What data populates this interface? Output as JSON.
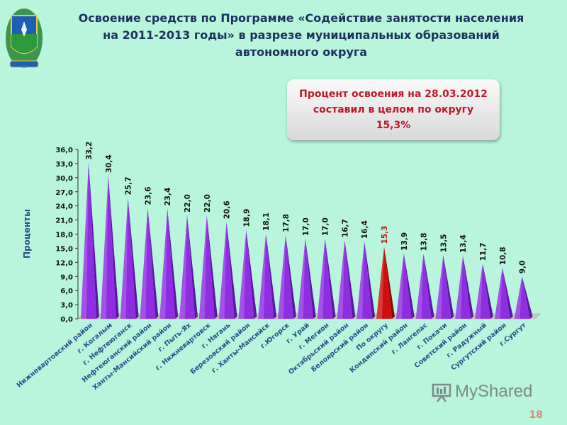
{
  "title": "Освоение средств по Программе «Содействие занятости населения на 2011-2013 годы» в разрезе муниципальных образований автономного округа",
  "callout": "Процент освоения на 28.03.2012 составил в целом по округу 15,3%",
  "page_number": "18",
  "watermark": "MyShared",
  "emblem_icon": "coat-of-arms-icon",
  "colors": {
    "bar": "#8e2de2",
    "highlight_bar": "#d01010",
    "background": "#b8f5dc",
    "title": "#1e2f5e"
  },
  "chart_data": {
    "type": "bar",
    "ylabel": "Проценты",
    "ylim": [
      0,
      36
    ],
    "yticks": [
      "0,0",
      "3,0",
      "6,0",
      "9,0",
      "12,0",
      "15,0",
      "18,0",
      "21,0",
      "24,0",
      "27,0",
      "30,0",
      "33,0",
      "36,0"
    ],
    "grid": false,
    "highlight_category": "По округу",
    "categories": [
      "Нижневартовский район",
      "г. Когалым",
      "г. Нефтеюганск",
      "Нефтеюганский район",
      "Ханты-Мансийский район",
      "г. Пыть-Ях",
      "г. Нижневартовск",
      "г. Нягань",
      "Березовский район",
      "г. Ханты-Мансийск",
      "г.Югорск",
      "г. Урай",
      "г. Мегион",
      "Октябрьский район",
      "Белоярский район",
      "По округу",
      "Кондинский район",
      "г. Лангепас",
      "г. Покачи",
      "Советский район",
      "г. Радужный",
      "Сургутский район",
      "г.Сургут"
    ],
    "values": [
      33.2,
      30.4,
      25.7,
      23.6,
      23.4,
      22.0,
      22.0,
      20.6,
      18.9,
      18.1,
      17.8,
      17.0,
      17.0,
      16.7,
      16.4,
      15.3,
      13.9,
      13.8,
      13.5,
      13.4,
      11.7,
      10.8,
      9.0
    ],
    "value_labels": [
      "33,2",
      "30,4",
      "25,7",
      "23,6",
      "23,4",
      "22,0",
      "22,0",
      "20,6",
      "18,9",
      "18,1",
      "17,8",
      "17,0",
      "17,0",
      "16,7",
      "16,4",
      "15,3",
      "13,9",
      "13,8",
      "13,5",
      "13,4",
      "11,7",
      "10,8",
      "9,0"
    ]
  }
}
